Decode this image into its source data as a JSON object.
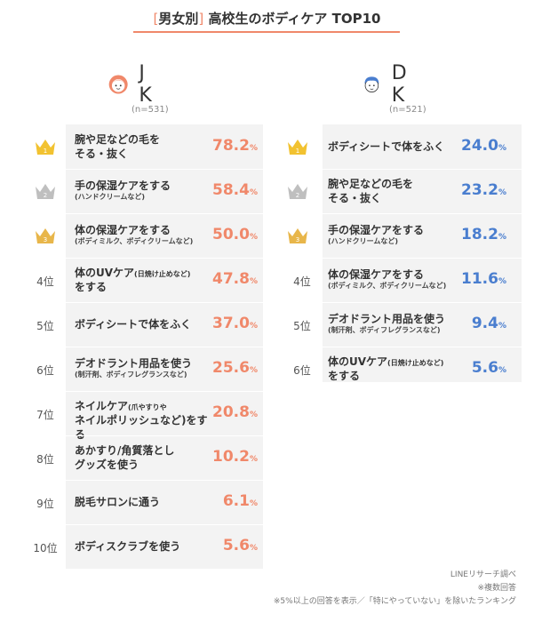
{
  "title": {
    "bracket_open": "[",
    "tag": "男女別",
    "bracket_close": "]",
    "text": " 高校生のボディケア TOP10"
  },
  "percent_sign": "%",
  "jk": {
    "name": "J K",
    "n": "(n=531)",
    "rank_suffix": "位",
    "items": [
      {
        "rank": "1",
        "label": "腕や足などの毛を",
        "label2": "そる・抜く",
        "value": "78.2"
      },
      {
        "rank": "2",
        "label": "手の保湿ケアをする",
        "sub": "(ハンドクリームなど)",
        "value": "58.4"
      },
      {
        "rank": "3",
        "label": "体の保湿ケアをする",
        "sub": "(ボディミルク、ボディクリームなど)",
        "value": "50.0"
      },
      {
        "rank": "4位",
        "label": "体のUVケア",
        "small": "(日焼け止めなど)",
        "label2": "をする",
        "value": "47.8"
      },
      {
        "rank": "5位",
        "label": "ボディシートで体をふく",
        "value": "37.0"
      },
      {
        "rank": "6位",
        "label": "デオドラント用品を使う",
        "sub": "(制汗剤、ボディフレグランスなど)",
        "value": "25.6"
      },
      {
        "rank": "7位",
        "label": "ネイルケア",
        "small": "(爪やすりや",
        "label2": "ネイルポリッシュなど)をする",
        "value": "20.8"
      },
      {
        "rank": "8位",
        "label": "あかすり/角質落とし",
        "label2": "グッズを使う",
        "value": "10.2"
      },
      {
        "rank": "9位",
        "label": "脱毛サロンに通う",
        "value": "6.1"
      },
      {
        "rank": "10位",
        "label": "ボディスクラブを使う",
        "value": "5.6"
      }
    ]
  },
  "dk": {
    "name": "D K",
    "n": "(n=521)",
    "items": [
      {
        "rank": "1",
        "label": "ボディシートで体をふく",
        "value": "24.0"
      },
      {
        "rank": "2",
        "label": "腕や足などの毛を",
        "label2": "そる・抜く",
        "value": "23.2"
      },
      {
        "rank": "3",
        "label": "手の保湿ケアをする",
        "sub": "(ハンドクリームなど)",
        "value": "18.2"
      },
      {
        "rank": "4位",
        "label": "体の保湿ケアをする",
        "sub": "(ボディミルク、ボディクリームなど)",
        "value": "11.6"
      },
      {
        "rank": "5位",
        "label": "デオドラント用品を使う",
        "sub": "(制汗剤、ボディフレグランスなど)",
        "value": "9.4"
      },
      {
        "rank": "6位",
        "label": "体のUVケア",
        "small": "(日焼け止めなど)",
        "label2": "をする",
        "value": "5.6"
      }
    ]
  },
  "notes": [
    "LINEリサーチ調べ",
    "※複数回答",
    "※5%以上の回答を表示／「特にやっていない」を除いたランキング"
  ],
  "colors": {
    "jk_accent": "#f0886a",
    "dk_accent": "#4a7ecf",
    "gold": "#f2c230",
    "silver": "#bfbfbf",
    "bronze": "#e8b64a"
  },
  "chart_data": [
    {
      "type": "table",
      "title": "[男女別] 高校生のボディケア TOP10",
      "series": [
        {
          "name": "J K",
          "values": [
            78.2,
            58.4,
            50.0,
            47.8,
            37.0,
            25.6,
            20.8,
            10.2,
            6.1,
            5.6
          ]
        }
      ],
      "categories": [
        "腕や足などの毛をそる・抜く",
        "手の保湿ケアをする(ハンドクリームなど)",
        "体の保湿ケアをする(ボディミルク、ボディクリームなど)",
        "体のUVケア(日焼け止めなど)をする",
        "ボディシートで体をふく",
        "デオドラント用品を使う(制汗剤、ボディフレグランスなど)",
        "ネイルケア(爪やすりやネイルポリッシュなど)をする",
        "あかすり/角質落としグッズを使う",
        "脱毛サロンに通う",
        "ボディスクラブを使う"
      ]
    },
    {
      "type": "table",
      "series": [
        {
          "name": "D K",
          "values": [
            24.0,
            23.2,
            18.2,
            11.6,
            9.4,
            5.6
          ]
        }
      ],
      "categories": [
        "ボディシートで体をふく",
        "腕や足などの毛をそる・抜く",
        "手の保湿ケアをする(ハンドクリームなど)",
        "体の保湿ケアをする(ボディミルク、ボディクリームなど)",
        "デオドラント用品を使う(制汗剤、ボディフレグランスなど)",
        "体のUVケア(日焼け止めなど)をする"
      ]
    }
  ]
}
